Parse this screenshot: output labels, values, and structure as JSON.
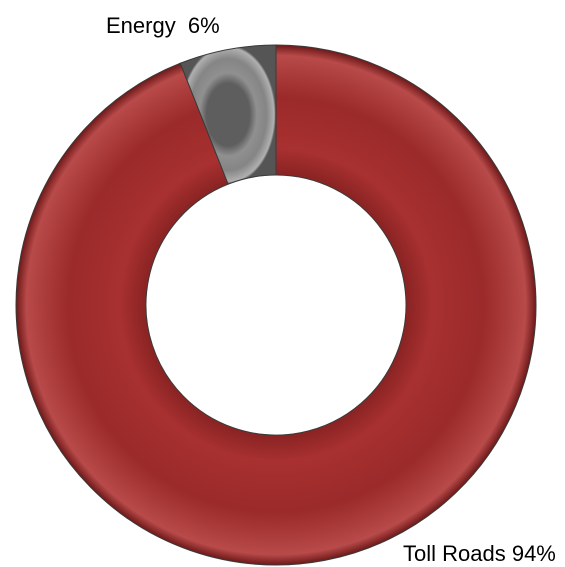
{
  "chart_data": {
    "type": "pie",
    "variant": "donut",
    "slices": [
      {
        "label": "Toll Roads",
        "value": 94,
        "display": "Toll Roads 94%",
        "color": "#9e2a2a"
      },
      {
        "label": "Energy",
        "value": 6,
        "display": "Energy  6%",
        "color": "#8a8a8a"
      }
    ],
    "title": "",
    "legend": "none",
    "start_angle_deg": 0,
    "direction": "clockwise"
  },
  "colors": {
    "toll_roads": "#9e2a2a",
    "energy": "#8a8a8a",
    "background": "#ffffff"
  }
}
